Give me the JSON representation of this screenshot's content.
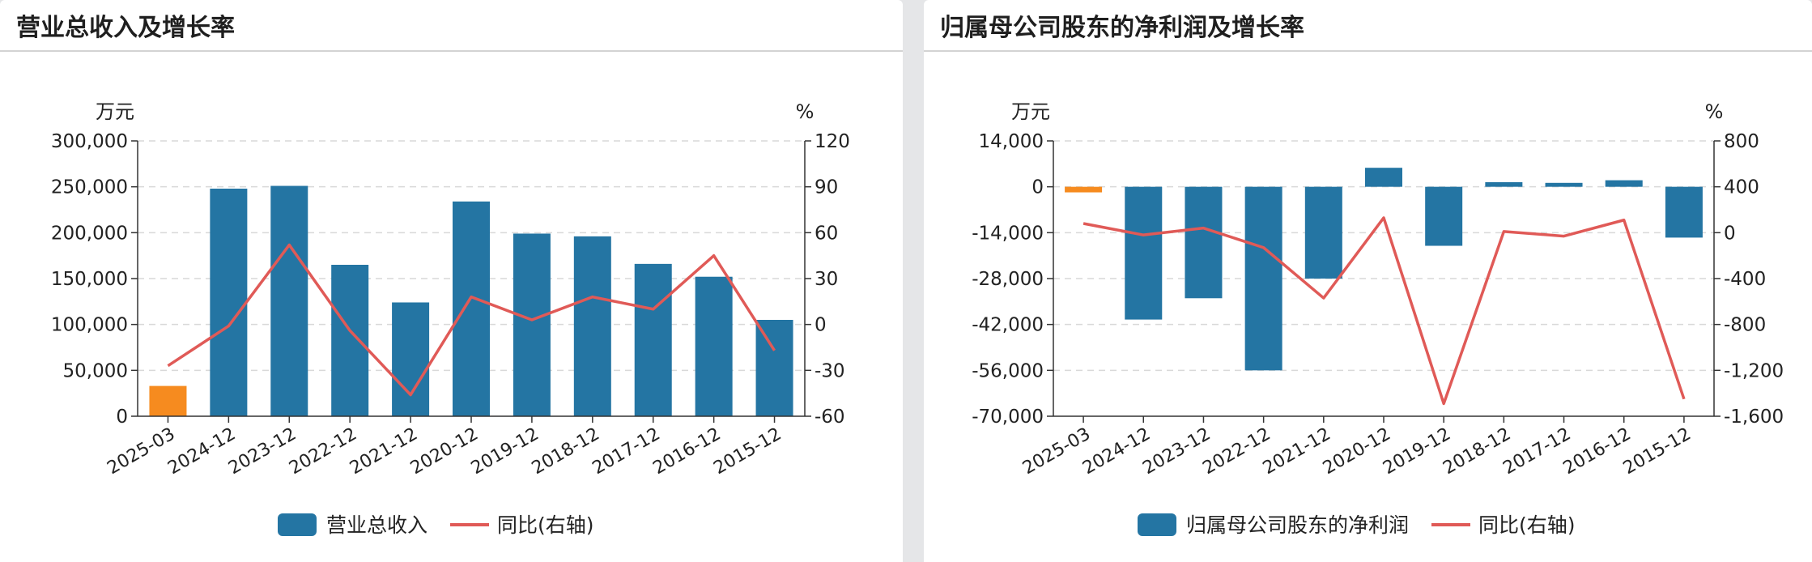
{
  "colors": {
    "bar": "#2475a3",
    "bar_highlight": "#f68b1f",
    "line": "#e05a57",
    "grid": "#d9d9d9",
    "axis": "#333333"
  },
  "panels": [
    {
      "title": "营业总收入及增长率",
      "chart_data": {
        "type": "bar",
        "title": "营业总收入及增长率",
        "categories": [
          "2025-03",
          "2024-12",
          "2023-12",
          "2022-12",
          "2021-12",
          "2020-12",
          "2019-12",
          "2018-12",
          "2017-12",
          "2016-12",
          "2015-12"
        ],
        "left_unit": "万元",
        "right_unit": "%",
        "ylim": [
          0,
          300000
        ],
        "y_ticks": [
          0,
          50000,
          100000,
          150000,
          200000,
          250000,
          300000
        ],
        "y_tick_labels": [
          "0",
          "50,000",
          "100,000",
          "150,000",
          "200,000",
          "250,000",
          "300,000"
        ],
        "y2lim": [
          -60,
          120
        ],
        "y2_ticks": [
          -60,
          -30,
          0,
          30,
          60,
          90,
          120
        ],
        "y2_tick_labels": [
          "-60",
          "-30",
          "0",
          "30",
          "60",
          "90",
          "120"
        ],
        "highlight_index": 0,
        "series": [
          {
            "name": "营业总收入",
            "type": "bar",
            "axis": "left",
            "values": [
              33000,
              248000,
              251000,
              165000,
              124000,
              234000,
              199000,
              196000,
              166000,
              152000,
              105000
            ]
          },
          {
            "name": "同比(右轴)",
            "type": "line",
            "axis": "right",
            "values": [
              -27,
              -1,
              52,
              -4,
              -46,
              18,
              3,
              18,
              10,
              45,
              -17
            ]
          }
        ],
        "legend_position": "bottom-center",
        "grid": true
      }
    },
    {
      "title": "归属母公司股东的净利润及增长率",
      "chart_data": {
        "type": "bar",
        "title": "归属母公司股东的净利润及增长率",
        "categories": [
          "2025-03",
          "2024-12",
          "2023-12",
          "2022-12",
          "2021-12",
          "2020-12",
          "2019-12",
          "2018-12",
          "2017-12",
          "2016-12",
          "2015-12"
        ],
        "left_unit": "万元",
        "right_unit": "%",
        "ylim": [
          -70000,
          14000
        ],
        "y_ticks": [
          -70000,
          -56000,
          -42000,
          -28000,
          -14000,
          0,
          14000
        ],
        "y_tick_labels": [
          "-70,000",
          "-56,000",
          "-42,000",
          "-28,000",
          "-14,000",
          "0",
          "14,000"
        ],
        "y2lim": [
          -1600,
          800
        ],
        "y2_ticks": [
          -1600,
          -1200,
          -800,
          -400,
          0,
          400,
          800
        ],
        "y2_tick_labels": [
          "-1,600",
          "-1,200",
          "-800",
          "-400",
          "0",
          "400",
          "800"
        ],
        "highlight_index": 0,
        "series": [
          {
            "name": "归属母公司股东的净利润",
            "type": "bar",
            "axis": "left",
            "values": [
              -1700,
              -40500,
              -34000,
              -56000,
              -28000,
              5800,
              -18000,
              1400,
              1200,
              2000,
              -15500
            ]
          },
          {
            "name": "同比(右轴)",
            "type": "line",
            "axis": "right",
            "values": [
              80,
              -20,
              40,
              -130,
              -570,
              130,
              -1490,
              10,
              -30,
              110,
              -1450
            ]
          }
        ],
        "legend_position": "bottom-center",
        "grid": true
      }
    }
  ]
}
